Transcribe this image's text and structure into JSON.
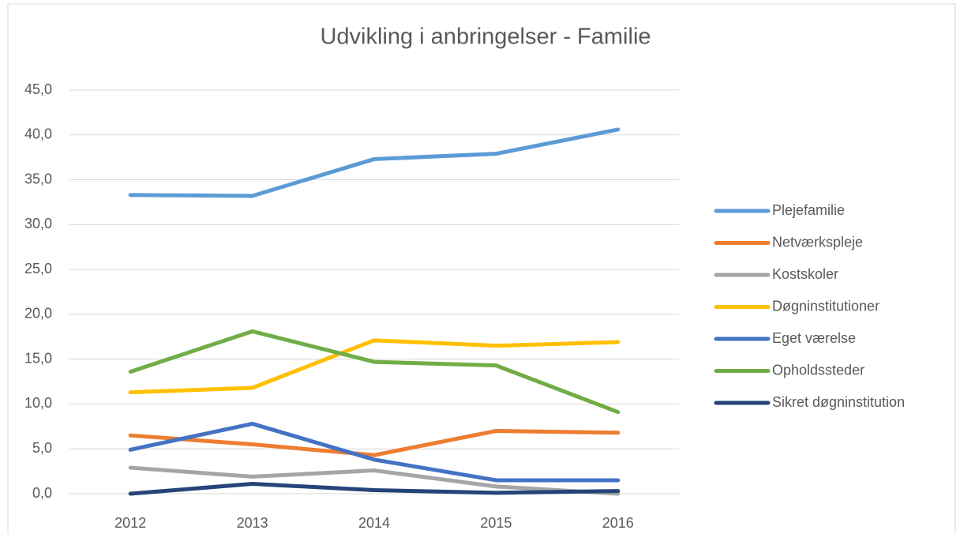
{
  "chart_data": {
    "type": "line",
    "title": "Udvikling i anbringelser - Familie",
    "categories": [
      "2012",
      "2013",
      "2014",
      "2015",
      "2016"
    ],
    "series": [
      {
        "name": "Plejefamilie",
        "color": "#5b9bd5",
        "values": [
          33.3,
          33.2,
          37.3,
          37.9,
          40.6
        ]
      },
      {
        "name": "Netværkspleje",
        "color": "#ed7d31",
        "values": [
          6.5,
          5.5,
          4.3,
          7.0,
          6.8
        ]
      },
      {
        "name": "Kostskoler",
        "color": "#a5a5a5",
        "values": [
          2.9,
          1.9,
          2.6,
          0.8,
          0.0
        ]
      },
      {
        "name": "Døgninstitutioner",
        "color": "#ffc000",
        "values": [
          11.3,
          11.8,
          17.1,
          16.5,
          16.9
        ]
      },
      {
        "name": "Eget værelse",
        "color": "#4472c4",
        "values": [
          4.9,
          7.8,
          3.8,
          1.5,
          1.5
        ]
      },
      {
        "name": "Opholdssteder",
        "color": "#70ad47",
        "values": [
          13.6,
          18.1,
          14.7,
          14.3,
          9.1
        ]
      },
      {
        "name": "Sikret døgninstitution",
        "color": "#264478",
        "values": [
          0.0,
          1.1,
          0.4,
          0.1,
          0.3
        ]
      }
    ],
    "ylim": [
      0,
      45
    ],
    "yticks": [
      {
        "value": 0,
        "label": "0,0"
      },
      {
        "value": 5,
        "label": "5,0"
      },
      {
        "value": 10,
        "label": "10,0"
      },
      {
        "value": 15,
        "label": "15,0"
      },
      {
        "value": 20,
        "label": "20,0"
      },
      {
        "value": 25,
        "label": "25,0"
      },
      {
        "value": 30,
        "label": "30,0"
      },
      {
        "value": 35,
        "label": "35,0"
      },
      {
        "value": 40,
        "label": "40,0"
      },
      {
        "value": 45,
        "label": "45,0"
      }
    ],
    "grid": true,
    "legend": "right"
  }
}
